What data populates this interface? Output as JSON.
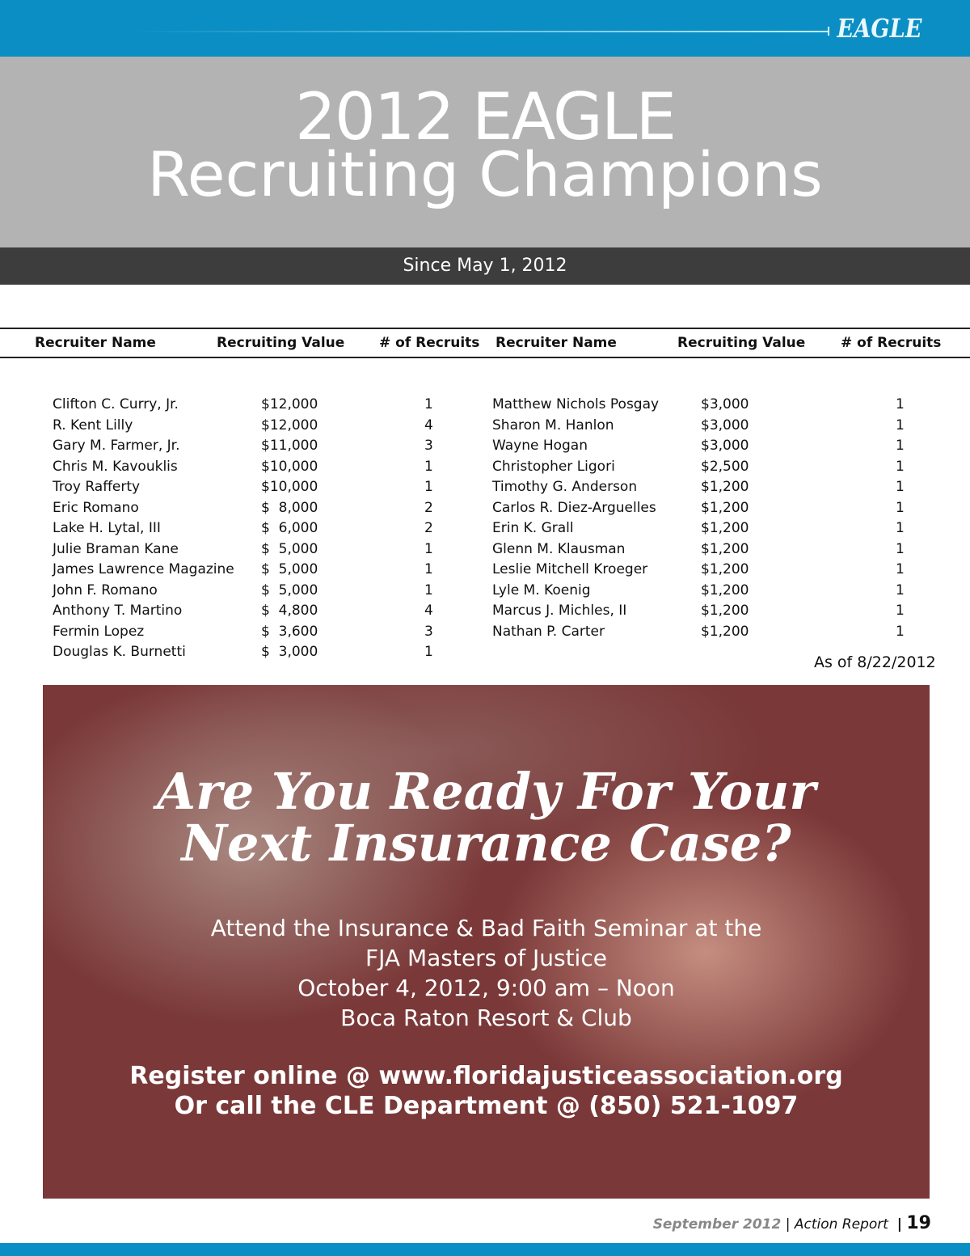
{
  "header": {
    "brand": "EAGLE",
    "title_line1": "2012 EAGLE",
    "title_line2": "Recruiting Champions",
    "subtitle": "Since May 1, 2012"
  },
  "table": {
    "headers": [
      "Recruiter Name",
      "Recruiting Value",
      "# of Recruits",
      "Recruiter Name",
      "Recruiting Value",
      "# of Recruits"
    ],
    "left": [
      [
        "Clifton C. Curry, Jr.",
        "$12,000",
        "1"
      ],
      [
        "R. Kent Lilly",
        "$12,000",
        "4"
      ],
      [
        "Gary M. Farmer, Jr.",
        "$11,000",
        "3"
      ],
      [
        "Chris M. Kavouklis",
        "$10,000",
        "1"
      ],
      [
        "Troy Rafferty",
        "$10,000",
        "1"
      ],
      [
        "Eric Romano",
        "$  8,000",
        "2"
      ],
      [
        "Lake H. Lytal, III",
        "$  6,000",
        "2"
      ],
      [
        "Julie Braman Kane",
        "$  5,000",
        "1"
      ],
      [
        "James Lawrence Magazine",
        "$  5,000",
        "1"
      ],
      [
        "John F. Romano",
        "$  5,000",
        "1"
      ],
      [
        "Anthony T. Martino",
        "$  4,800",
        "4"
      ],
      [
        "Fermin Lopez",
        "$  3,600",
        "3"
      ],
      [
        "Douglas K. Burnetti",
        "$  3,000",
        "1"
      ]
    ],
    "right": [
      [
        "Matthew Nichols Posgay",
        "$3,000",
        "1"
      ],
      [
        "Sharon M. Hanlon",
        "$3,000",
        "1"
      ],
      [
        "Wayne Hogan",
        "$3,000",
        "1"
      ],
      [
        "Christopher Ligori",
        "$2,500",
        "1"
      ],
      [
        "Timothy G.  Anderson",
        "$1,200",
        "1"
      ],
      [
        "Carlos R. Diez-Arguelles",
        "$1,200",
        "1"
      ],
      [
        "Erin K. Grall",
        "$1,200",
        "1"
      ],
      [
        "Glenn M. Klausman",
        "$1,200",
        "1"
      ],
      [
        "Leslie Mitchell Kroeger",
        "$1,200",
        "1"
      ],
      [
        "Lyle M. Koenig",
        "$1,200",
        "1"
      ],
      [
        "Marcus J. Michles, II",
        "$1,200",
        "1"
      ],
      [
        "Nathan P. Carter",
        "$1,200",
        "1"
      ]
    ],
    "as_of": "As of 8/22/2012"
  },
  "ad": {
    "headline1": "Are You Ready For Your",
    "headline2": "Next Insurance Case?",
    "lines": [
      "Attend the Insurance & Bad Faith Seminar at the",
      "FJA Masters of Justice",
      "October 4, 2012, 9:00 am – Noon",
      "Boca Raton Resort & Club"
    ],
    "register": "Register online @ www.floridajusticeassociation.org",
    "call": "Or call the CLE Department @ (850) 521-1097"
  },
  "footer": {
    "month": "September 2012",
    "sep": "|",
    "publication": "Action Report",
    "page": "19"
  },
  "colors": {
    "blue": "#0a8ec3",
    "gray": "#b3b3b3",
    "dark": "#3d3d3d",
    "ad": "#7a3838"
  }
}
